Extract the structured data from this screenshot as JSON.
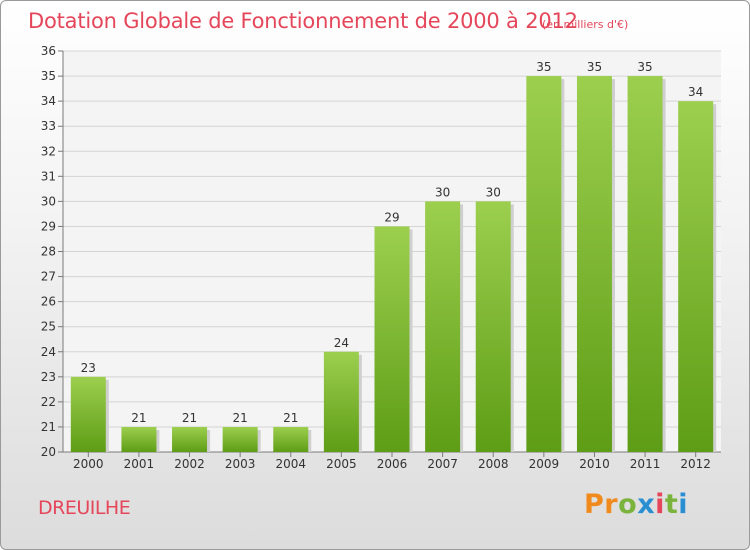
{
  "header": {
    "title": "Dotation Globale de Fonctionnement de 2000 à 2012",
    "unit": "(en milliers d'€)"
  },
  "footer": {
    "commune": "DREUILHE",
    "logo_text": "Proxiti"
  },
  "colors": {
    "title": "#e5465a",
    "bar_top": "#9ccf4e",
    "bar_bottom": "#5e9d16",
    "grid": "#d4d4d4",
    "axis": "#7a7a7a",
    "logo": [
      "#f08a1c",
      "#f08a1c",
      "#7ab43c",
      "#2a8fd2",
      "#e5465a",
      "#7ab43c",
      "#2a8fd2"
    ]
  },
  "chart_data": {
    "type": "bar",
    "title": "Dotation Globale de Fonctionnement de 2000 à 2012",
    "categories": [
      "2000",
      "2001",
      "2002",
      "2003",
      "2004",
      "2005",
      "2006",
      "2007",
      "2008",
      "2009",
      "2010",
      "2011",
      "2012"
    ],
    "values": [
      23,
      21,
      21,
      21,
      21,
      24,
      29,
      30,
      30,
      35,
      35,
      35,
      34
    ],
    "data_labels": [
      "23",
      "21",
      "21",
      "21",
      "21",
      "24",
      "29",
      "30",
      "30",
      "35",
      "35",
      "35",
      "34"
    ],
    "y_ticks": [
      "20",
      "21",
      "22",
      "23",
      "24",
      "25",
      "26",
      "27",
      "28",
      "29",
      "30",
      "31",
      "32",
      "33",
      "34",
      "35",
      "36"
    ],
    "ylim": [
      20,
      36
    ],
    "xlabel": "",
    "ylabel": "",
    "grid": true
  }
}
